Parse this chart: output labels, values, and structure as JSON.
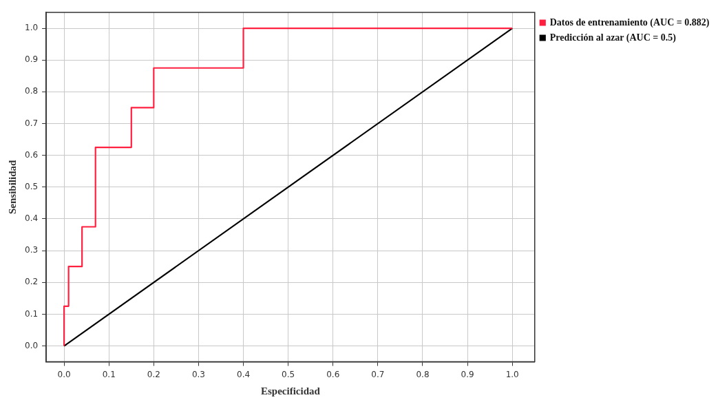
{
  "chart_data": {
    "type": "line",
    "xlabel": "Especificidad",
    "ylabel": "Sensibilidad",
    "series": [
      {
        "name": "Datos de entrenamiento (AUC = 0.882)",
        "color": "#ff2040",
        "x": [
          0,
          0,
          0.01,
          0.01,
          0.04,
          0.04,
          0.07,
          0.07,
          0.15,
          0.15,
          0.2,
          0.2,
          0.4,
          0.4,
          1
        ],
        "values": [
          0,
          0.125,
          0.125,
          0.25,
          0.25,
          0.375,
          0.375,
          0.625,
          0.625,
          0.75,
          0.75,
          0.875,
          0.875,
          1,
          1
        ]
      },
      {
        "name": "Predicción al azar (AUC = 0.5)",
        "color": "#000000",
        "x": [
          0,
          1
        ],
        "values": [
          0,
          1
        ]
      }
    ],
    "xlim": [
      -0.04,
      1.05
    ],
    "xticks": [
      {
        "value": 0,
        "label": "0.0"
      },
      0.1,
      0.2,
      0.3,
      0.4,
      0.5,
      0.6,
      0.7,
      0.8,
      0.9,
      {
        "value": 1,
        "label": "1.0"
      }
    ],
    "ylim": [
      -0.05,
      1.05
    ],
    "yticks": [
      {
        "value": 0,
        "label": "0.0"
      },
      0.1,
      0.2,
      0.3,
      0.4,
      0.5,
      0.6,
      0.7,
      0.8,
      0.9,
      {
        "value": 1,
        "label": "1.0"
      }
    ],
    "grid": true,
    "legend": "right",
    "marker": "none",
    "line_style": "solid"
  }
}
